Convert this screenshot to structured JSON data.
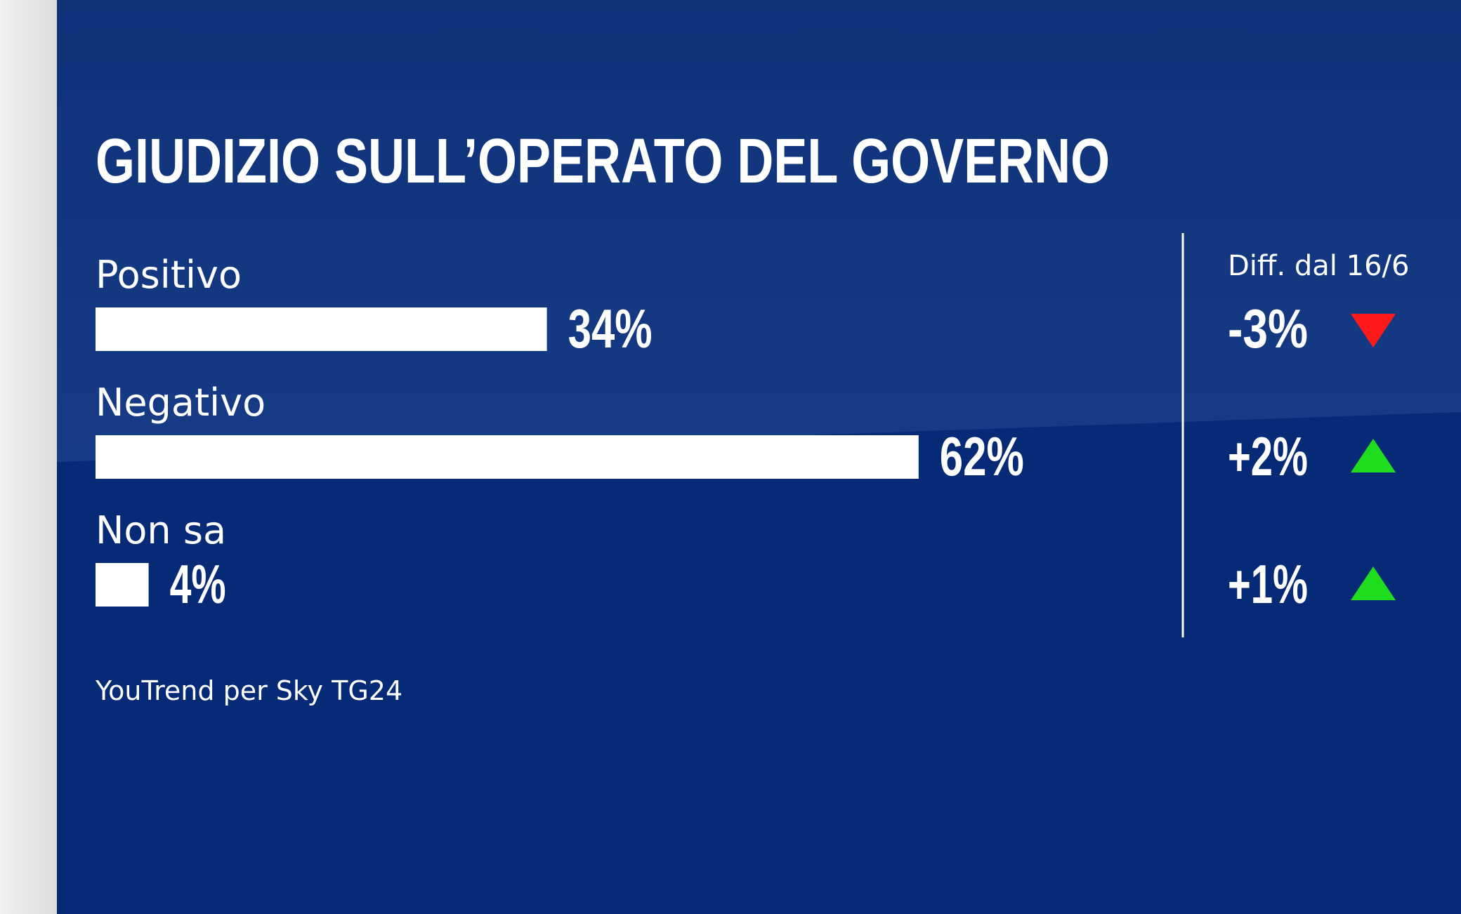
{
  "title": "GIUDIZIO SULL’OPERATO DEL GOVERNO",
  "source": "YouTrend per Sky TG24",
  "diff_header": "Diff. dal 16/6",
  "colors": {
    "background": "#062a75",
    "bar": "#ffffff",
    "down": "#ff1a1a",
    "up": "#1fdc1f"
  },
  "chart_data": {
    "type": "bar",
    "orientation": "horizontal",
    "title": "GIUDIZIO SULL’OPERATO DEL GOVERNO",
    "categories": [
      "Positivo",
      "Negativo",
      "Non sa"
    ],
    "values": [
      34,
      62,
      4
    ],
    "value_labels": [
      "34%",
      "62%",
      "4%"
    ],
    "unit": "%",
    "xlim": [
      0,
      100
    ],
    "changes": {
      "header": "Diff. dal 16/6",
      "values": [
        -3,
        2,
        1
      ],
      "labels": [
        "-3%",
        "+2%",
        "+1%"
      ],
      "directions": [
        "down",
        "up",
        "up"
      ]
    },
    "source": "YouTrend per Sky TG24"
  }
}
